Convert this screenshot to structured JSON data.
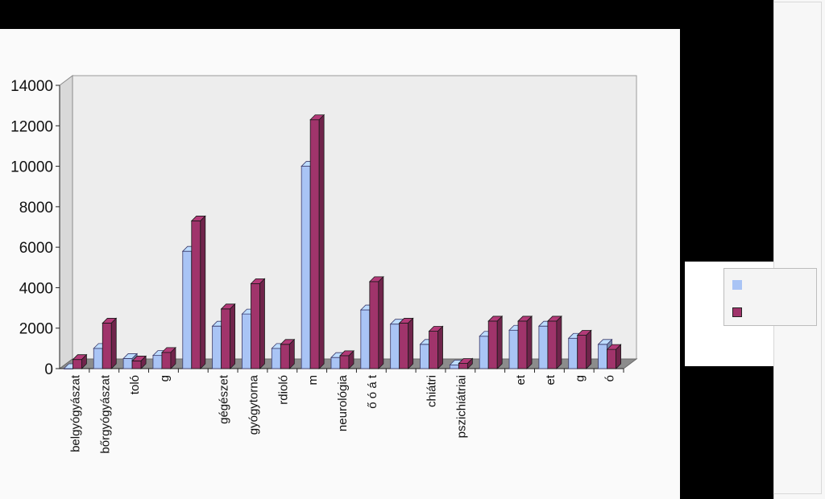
{
  "chart_data": {
    "type": "bar",
    "style": "3d-clustered-column",
    "categories": [
      "belgyógyászat",
      "bőrgyógyászat",
      "toló",
      "g",
      "",
      "gégészet",
      "gyógytorna",
      "rdioló",
      "m",
      "neurológia",
      "ő ó á t",
      "",
      "chiátri",
      "pszichiátriai",
      "",
      "et",
      "et",
      "g",
      "ó"
    ],
    "series": [
      {
        "color": "#a9c4f5",
        "values": [
          0,
          1000,
          500,
          650,
          5800,
          2100,
          2700,
          1000,
          10000,
          550,
          2900,
          2200,
          1200,
          180,
          1600,
          1900,
          2100,
          1500,
          1200
        ]
      },
      {
        "color": "#a0346b",
        "values": [
          450,
          2250,
          380,
          800,
          7300,
          2950,
          4200,
          1200,
          12300,
          640,
          4300,
          2250,
          1850,
          260,
          2350,
          2350,
          2350,
          1650,
          950
        ]
      }
    ],
    "ylim": [
      0,
      14000
    ],
    "yticks": [
      "0",
      "2000",
      "4000",
      "6000",
      "8000",
      "10000",
      "12000",
      "14000"
    ],
    "grid": false,
    "legend_position": "right"
  }
}
